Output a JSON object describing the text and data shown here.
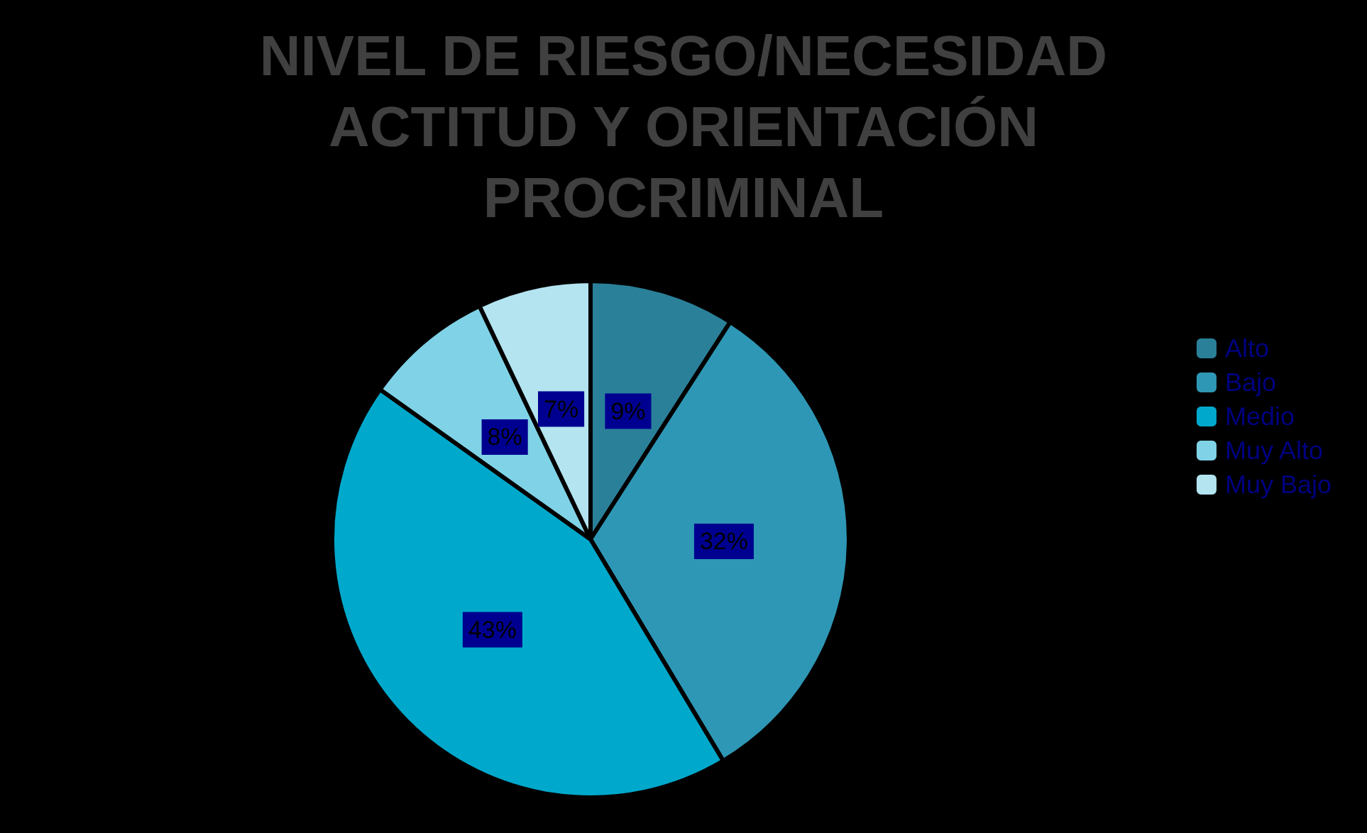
{
  "chart_data": {
    "type": "pie",
    "title": "NIVEL DE RIESGO/NECESIDAD\nACTITUD Y ORIENTACIÓN\nPROCRIMINAL",
    "categories": [
      "Alto",
      "Bajo",
      "Medio",
      "Muy Alto",
      "Muy Bajo"
    ],
    "values": [
      9,
      32,
      43,
      8,
      7
    ],
    "colors": [
      "#2a8099",
      "#2e97b5",
      "#00a9cc",
      "#80d2e6",
      "#b3e4f0"
    ],
    "legend": "right",
    "value_labels": [
      "9%",
      "32%",
      "43%",
      "8%",
      "7%"
    ]
  }
}
